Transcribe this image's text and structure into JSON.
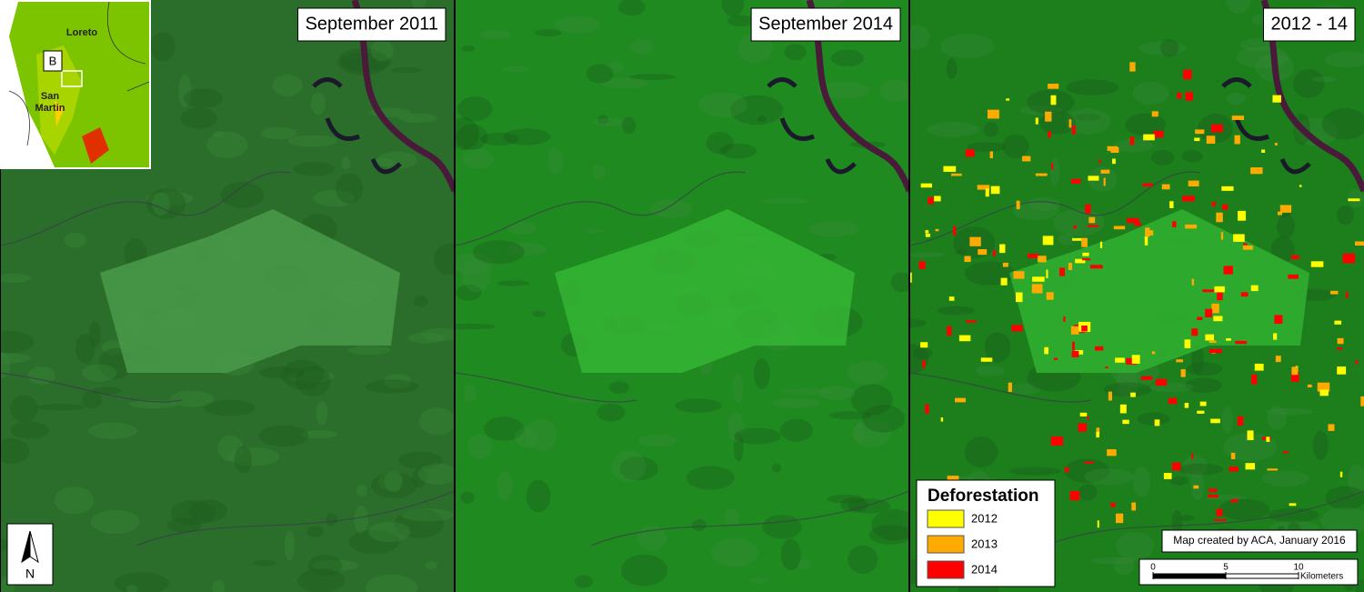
{
  "panels": [
    {
      "title": "September 2011"
    },
    {
      "title": "September 2014"
    },
    {
      "title": "2012 - 14"
    }
  ],
  "inset": {
    "region_north": "Loreto",
    "marker": "B",
    "region_south": "San\nMartin"
  },
  "north_arrow": "N",
  "legend": {
    "title": "Deforestation",
    "items": [
      {
        "label": "2012",
        "color": "#ffff00"
      },
      {
        "label": "2013",
        "color": "#ffaa00"
      },
      {
        "label": "2014",
        "color": "#ff0000"
      }
    ]
  },
  "credit": "Map created by ACA, January 2016",
  "scale_bar": {
    "ticks": [
      0,
      5,
      10
    ],
    "unit": "Kilometers"
  }
}
